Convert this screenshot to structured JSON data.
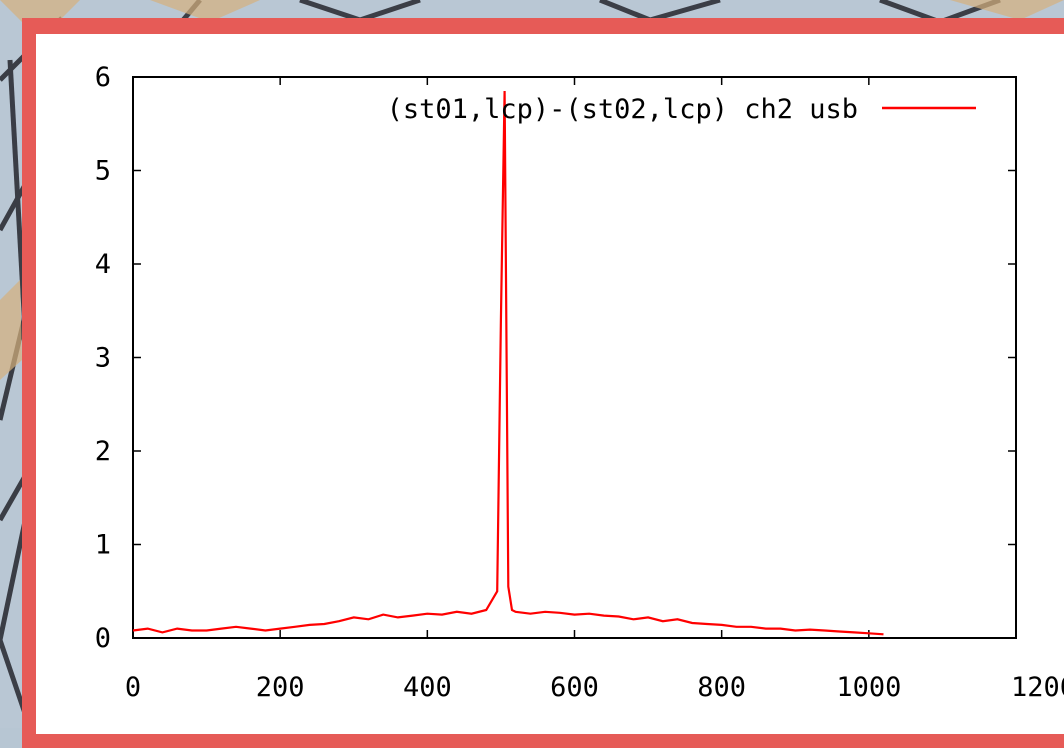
{
  "colors": {
    "frame": "#e65b57",
    "series": "#ff0000",
    "axis": "#000000",
    "background": "#ffffff"
  },
  "chart_data": {
    "type": "line",
    "title": "",
    "xlabel": "",
    "ylabel": "",
    "xlim": [
      0,
      1200
    ],
    "ylim": [
      0,
      6
    ],
    "xticks": [
      "0",
      "200",
      "400",
      "600",
      "800",
      "1000",
      "1200"
    ],
    "yticks": [
      "0",
      "1",
      "2",
      "3",
      "4",
      "5",
      "6"
    ],
    "grid": false,
    "legend_position": "top-right",
    "series": [
      {
        "name": "(st01,lcp)-(st02,lcp) ch2 usb",
        "color": "#ff0000",
        "x": [
          0,
          20,
          40,
          60,
          80,
          100,
          120,
          140,
          160,
          180,
          200,
          220,
          240,
          260,
          280,
          300,
          320,
          340,
          360,
          380,
          400,
          420,
          440,
          460,
          480,
          495,
          500,
          505,
          510,
          515,
          520,
          540,
          560,
          580,
          600,
          620,
          640,
          660,
          680,
          700,
          720,
          740,
          760,
          780,
          800,
          820,
          840,
          860,
          880,
          900,
          920,
          940,
          960,
          980,
          1000,
          1020
        ],
        "y": [
          0.08,
          0.1,
          0.06,
          0.1,
          0.08,
          0.08,
          0.1,
          0.12,
          0.1,
          0.08,
          0.1,
          0.12,
          0.14,
          0.15,
          0.18,
          0.22,
          0.2,
          0.25,
          0.22,
          0.24,
          0.26,
          0.25,
          0.28,
          0.26,
          0.3,
          0.5,
          3.4,
          5.85,
          0.55,
          0.3,
          0.28,
          0.26,
          0.28,
          0.27,
          0.25,
          0.26,
          0.24,
          0.23,
          0.2,
          0.22,
          0.18,
          0.2,
          0.16,
          0.15,
          0.14,
          0.12,
          0.12,
          0.1,
          0.1,
          0.08,
          0.09,
          0.08,
          0.07,
          0.06,
          0.05,
          0.04
        ]
      }
    ]
  }
}
